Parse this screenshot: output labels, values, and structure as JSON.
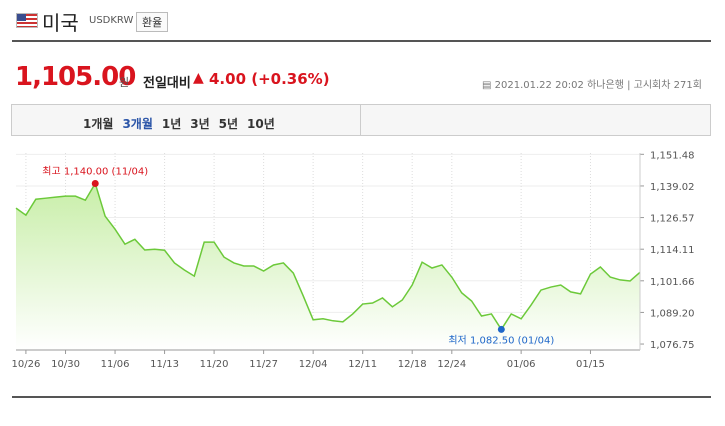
{
  "header": {
    "country": "미국",
    "code": "USDKRW",
    "button": "환율"
  },
  "quote": {
    "price": "1,105.00",
    "unit": "원",
    "change_label": "전일대비",
    "change": "4.00",
    "change_pct": "(+0.36%)",
    "datetime": "2021.01.22 20:02",
    "bank": "하나은행",
    "round": "고시회차 271회"
  },
  "tabs": [
    "1개월",
    "3개월",
    "1년",
    "3년",
    "5년",
    "10년"
  ],
  "active_tab": 1,
  "chart_data": {
    "type": "area",
    "color": "#6cc93a",
    "fill": "#c8eea8",
    "categories": [
      null,
      "10/26",
      null,
      null,
      null,
      "10/30",
      null,
      null,
      null,
      null,
      "11/06",
      null,
      null,
      null,
      null,
      "11/13",
      null,
      null,
      null,
      null,
      "11/20",
      null,
      null,
      null,
      null,
      "11/27",
      null,
      null,
      null,
      null,
      "12/04",
      null,
      null,
      null,
      null,
      "12/11",
      null,
      null,
      null,
      null,
      "12/18",
      null,
      null,
      null,
      "12/24",
      null,
      null,
      null,
      null,
      null,
      null,
      "01/06",
      null,
      null,
      null,
      null,
      null,
      null,
      "01/15",
      null,
      null,
      null,
      null,
      null
    ],
    "values": [
      1130.3,
      1127.5,
      1133.8,
      1134.2,
      1134.6,
      1135,
      1135,
      1133.4,
      1140.0,
      1127.1,
      1122,
      1116.1,
      1118,
      1113.8,
      1114.1,
      1113.7,
      1108.7,
      1105.9,
      1103.5,
      1116.9,
      1116.9,
      1111,
      1108.7,
      1107.5,
      1107.5,
      1105.5,
      1107.9,
      1108.7,
      1104.7,
      1095.7,
      1086.3,
      1086.7,
      1085.9,
      1085.5,
      1088.6,
      1092.5,
      1092.9,
      1094.9,
      1091.4,
      1094.1,
      1100,
      1109,
      1106.7,
      1107.9,
      1103.1,
      1096.9,
      1093.7,
      1087.8,
      1088.6,
      1082.5,
      1088.6,
      1086.7,
      1092.1,
      1098,
      1099.2,
      1100,
      1097.3,
      1096.5,
      1104.3,
      1107.1,
      1103.1,
      1102,
      1101.6,
      1105.0
    ],
    "ylim": [
      1074.4,
      1152
    ],
    "yticks": [
      {
        "value": 1151.48,
        "label": "1,151.48"
      },
      {
        "value": 1139.02,
        "label": "1,139.02"
      },
      {
        "value": 1126.57,
        "label": "1,126.57"
      },
      {
        "value": 1114.11,
        "label": "1,114.11"
      },
      {
        "value": 1101.66,
        "label": "1,101.66"
      },
      {
        "value": 1089.2,
        "label": "1,089.20"
      },
      {
        "value": 1076.75,
        "label": "1,076.75"
      }
    ],
    "annotations": [
      {
        "index": 8,
        "text": "최고 1,140.00 (11/04)",
        "color": "#d9141e"
      },
      {
        "index": 49,
        "text": "최저 1,082.50 (01/04)",
        "color": "#1f67c9"
      }
    ],
    "grid": true
  }
}
